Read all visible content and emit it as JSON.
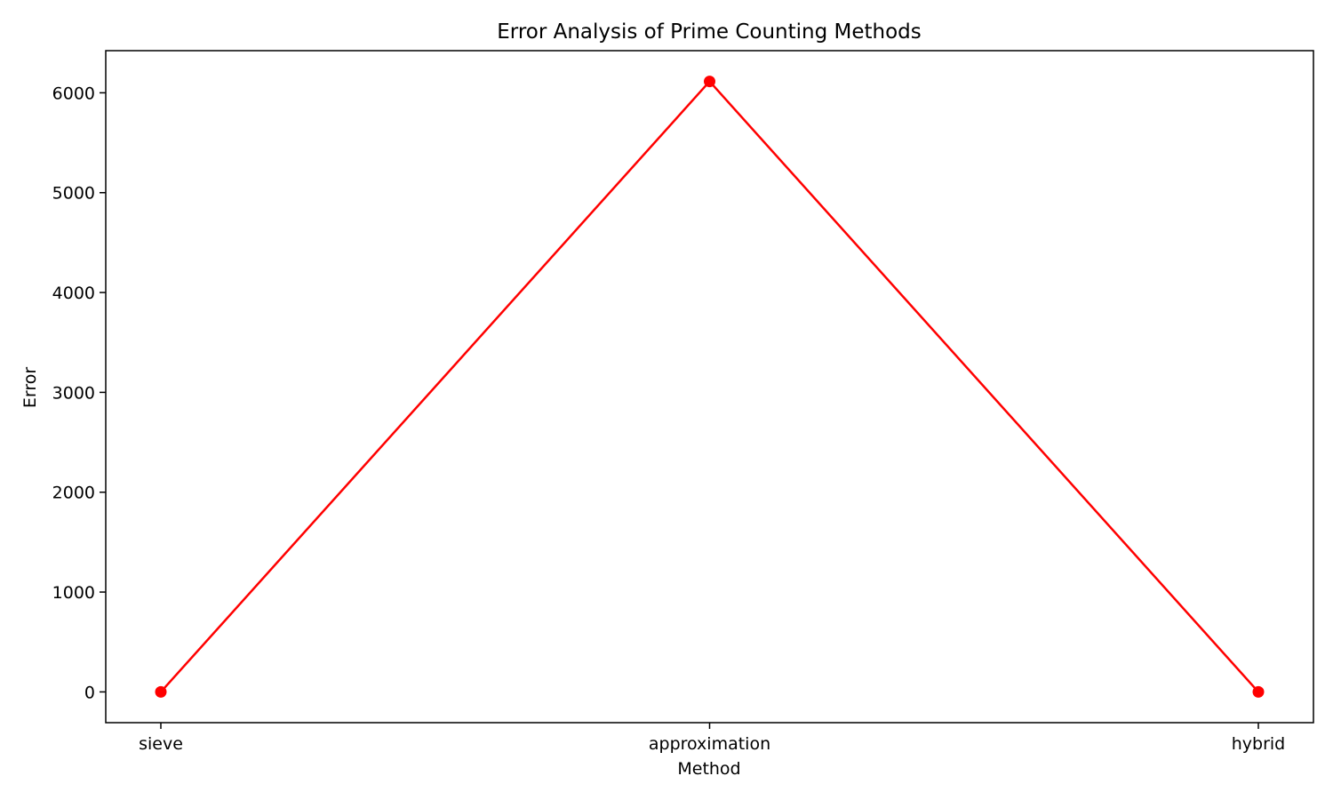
{
  "chart_data": {
    "type": "line",
    "title": "Error Analysis of Prime Counting Methods",
    "xlabel": "Method",
    "ylabel": "Error",
    "categories": [
      "sieve",
      "approximation",
      "hybrid"
    ],
    "series": [
      {
        "values": [
          0,
          6114,
          0
        ],
        "color": "#ff0000",
        "marker": "circle"
      }
    ],
    "yticks": [
      0,
      1000,
      2000,
      3000,
      4000,
      5000,
      6000
    ],
    "ylim": [
      -308,
      6422
    ],
    "grid": false,
    "legend": "none"
  }
}
